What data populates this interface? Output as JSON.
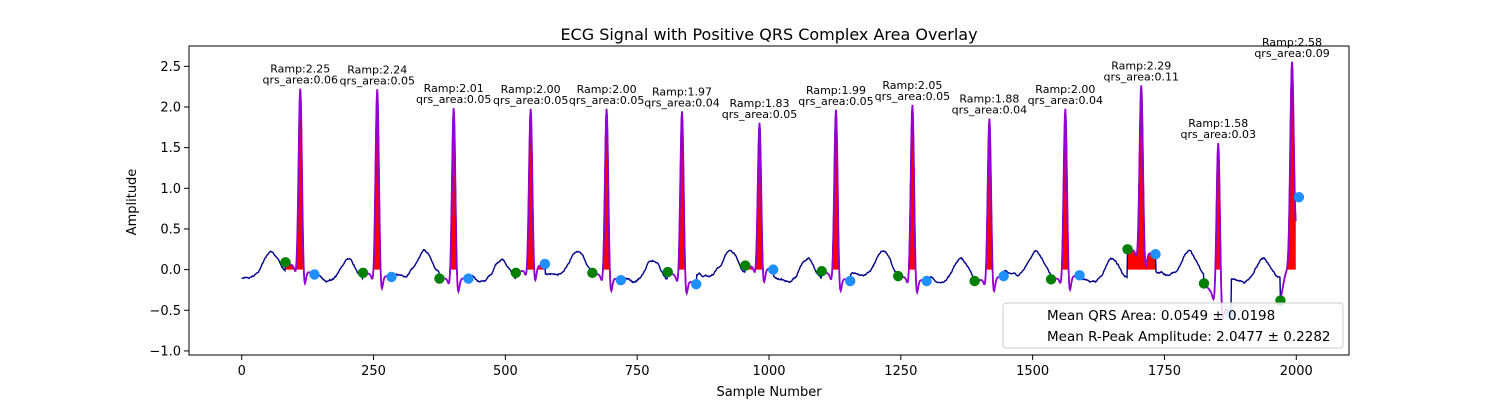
{
  "chart_data": {
    "type": "line",
    "title": "ECG Signal with Positive QRS Complex Area Overlay",
    "xlabel": "Sample Number",
    "ylabel": "Amplitude",
    "xlim": [
      -100,
      2100
    ],
    "ylim": [
      -1.05,
      2.75
    ],
    "xticks": [
      0,
      250,
      500,
      750,
      1000,
      1250,
      1500,
      1750,
      2000
    ],
    "xtick_labels": [
      "0",
      "250",
      "500",
      "750",
      "1000",
      "1250",
      "1500",
      "1750",
      "2000"
    ],
    "yticks": [
      -1.0,
      -0.5,
      0.0,
      0.5,
      1.0,
      1.5,
      2.0,
      2.5
    ],
    "ytick_labels": [
      "−1.0",
      "−0.5",
      "0.0",
      "0.5",
      "1.0",
      "1.5",
      "2.0",
      "2.5"
    ],
    "grid": false,
    "colors": {
      "signal": "#00008b",
      "qrs_segment": "#9400d3",
      "qrs_area": "#ff0000",
      "onset_marker": "#008000",
      "offset_marker": "#1e90ff"
    },
    "beats": [
      {
        "onset": 83,
        "onset_amp": 0.09,
        "peak": 111,
        "peak_amp": 2.25,
        "offset": 138,
        "offset_amp": -0.06,
        "label_ramp": "Ramp:2.25",
        "label_area": "qrs_area:0.06"
      },
      {
        "onset": 230,
        "onset_amp": -0.04,
        "peak": 257,
        "peak_amp": 2.24,
        "offset": 284,
        "offset_amp": -0.09,
        "label_ramp": "Ramp:2.24",
        "label_area": "qrs_area:0.05"
      },
      {
        "onset": 375,
        "onset_amp": -0.11,
        "peak": 402,
        "peak_amp": 2.01,
        "offset": 430,
        "offset_amp": -0.11,
        "label_ramp": "Ramp:2.01",
        "label_area": "qrs_area:0.05"
      },
      {
        "onset": 520,
        "onset_amp": -0.04,
        "peak": 548,
        "peak_amp": 2.0,
        "offset": 575,
        "offset_amp": 0.07,
        "label_ramp": "Ramp:2.00",
        "label_area": "qrs_area:0.05"
      },
      {
        "onset": 665,
        "onset_amp": -0.04,
        "peak": 692,
        "peak_amp": 2.0,
        "offset": 719,
        "offset_amp": -0.13,
        "label_ramp": "Ramp:2.00",
        "label_area": "qrs_area:0.05"
      },
      {
        "onset": 808,
        "onset_amp": -0.03,
        "peak": 835,
        "peak_amp": 1.97,
        "offset": 862,
        "offset_amp": -0.18,
        "label_ramp": "Ramp:1.97",
        "label_area": "qrs_area:0.04"
      },
      {
        "onset": 955,
        "onset_amp": 0.05,
        "peak": 982,
        "peak_amp": 1.83,
        "offset": 1008,
        "offset_amp": 0.0,
        "label_ramp": "Ramp:1.83",
        "label_area": "qrs_area:0.05"
      },
      {
        "onset": 1100,
        "onset_amp": -0.02,
        "peak": 1127,
        "peak_amp": 1.99,
        "offset": 1154,
        "offset_amp": -0.14,
        "label_ramp": "Ramp:1.99",
        "label_area": "qrs_area:0.05"
      },
      {
        "onset": 1245,
        "onset_amp": -0.08,
        "peak": 1272,
        "peak_amp": 2.05,
        "offset": 1299,
        "offset_amp": -0.14,
        "label_ramp": "Ramp:2.05",
        "label_area": "qrs_area:0.05"
      },
      {
        "onset": 1390,
        "onset_amp": -0.14,
        "peak": 1418,
        "peak_amp": 1.88,
        "offset": 1445,
        "offset_amp": -0.08,
        "label_ramp": "Ramp:1.88",
        "label_area": "qrs_area:0.04"
      },
      {
        "onset": 1535,
        "onset_amp": -0.12,
        "peak": 1562,
        "peak_amp": 2.0,
        "offset": 1589,
        "offset_amp": -0.07,
        "label_ramp": "Ramp:2.00",
        "label_area": "qrs_area:0.04"
      },
      {
        "onset": 1680,
        "onset_amp": 0.25,
        "peak": 1706,
        "peak_amp": 2.29,
        "offset": 1733,
        "offset_amp": 0.19,
        "label_ramp": "Ramp:2.29",
        "label_area": "qrs_area:0.11"
      },
      {
        "onset": 1825,
        "onset_amp": -0.17,
        "peak": 1852,
        "peak_amp": 1.58,
        "offset": 1876,
        "offset_amp": -0.55,
        "label_ramp": "Ramp:1.58",
        "label_area": "qrs_area:0.03"
      },
      {
        "onset": 1970,
        "onset_amp": -0.38,
        "peak": 1992,
        "peak_amp": 2.58,
        "offset": 2005,
        "offset_amp": 0.89,
        "label_ramp": "Ramp:2.58",
        "label_area": "qrs_area:0.09"
      }
    ],
    "legend": {
      "location": "lower-right",
      "entries": [
        "Mean QRS Area: 0.0549 ± 0.0198",
        "Mean R-Peak Amplitude: 2.0477 ± 0.2282"
      ]
    }
  }
}
